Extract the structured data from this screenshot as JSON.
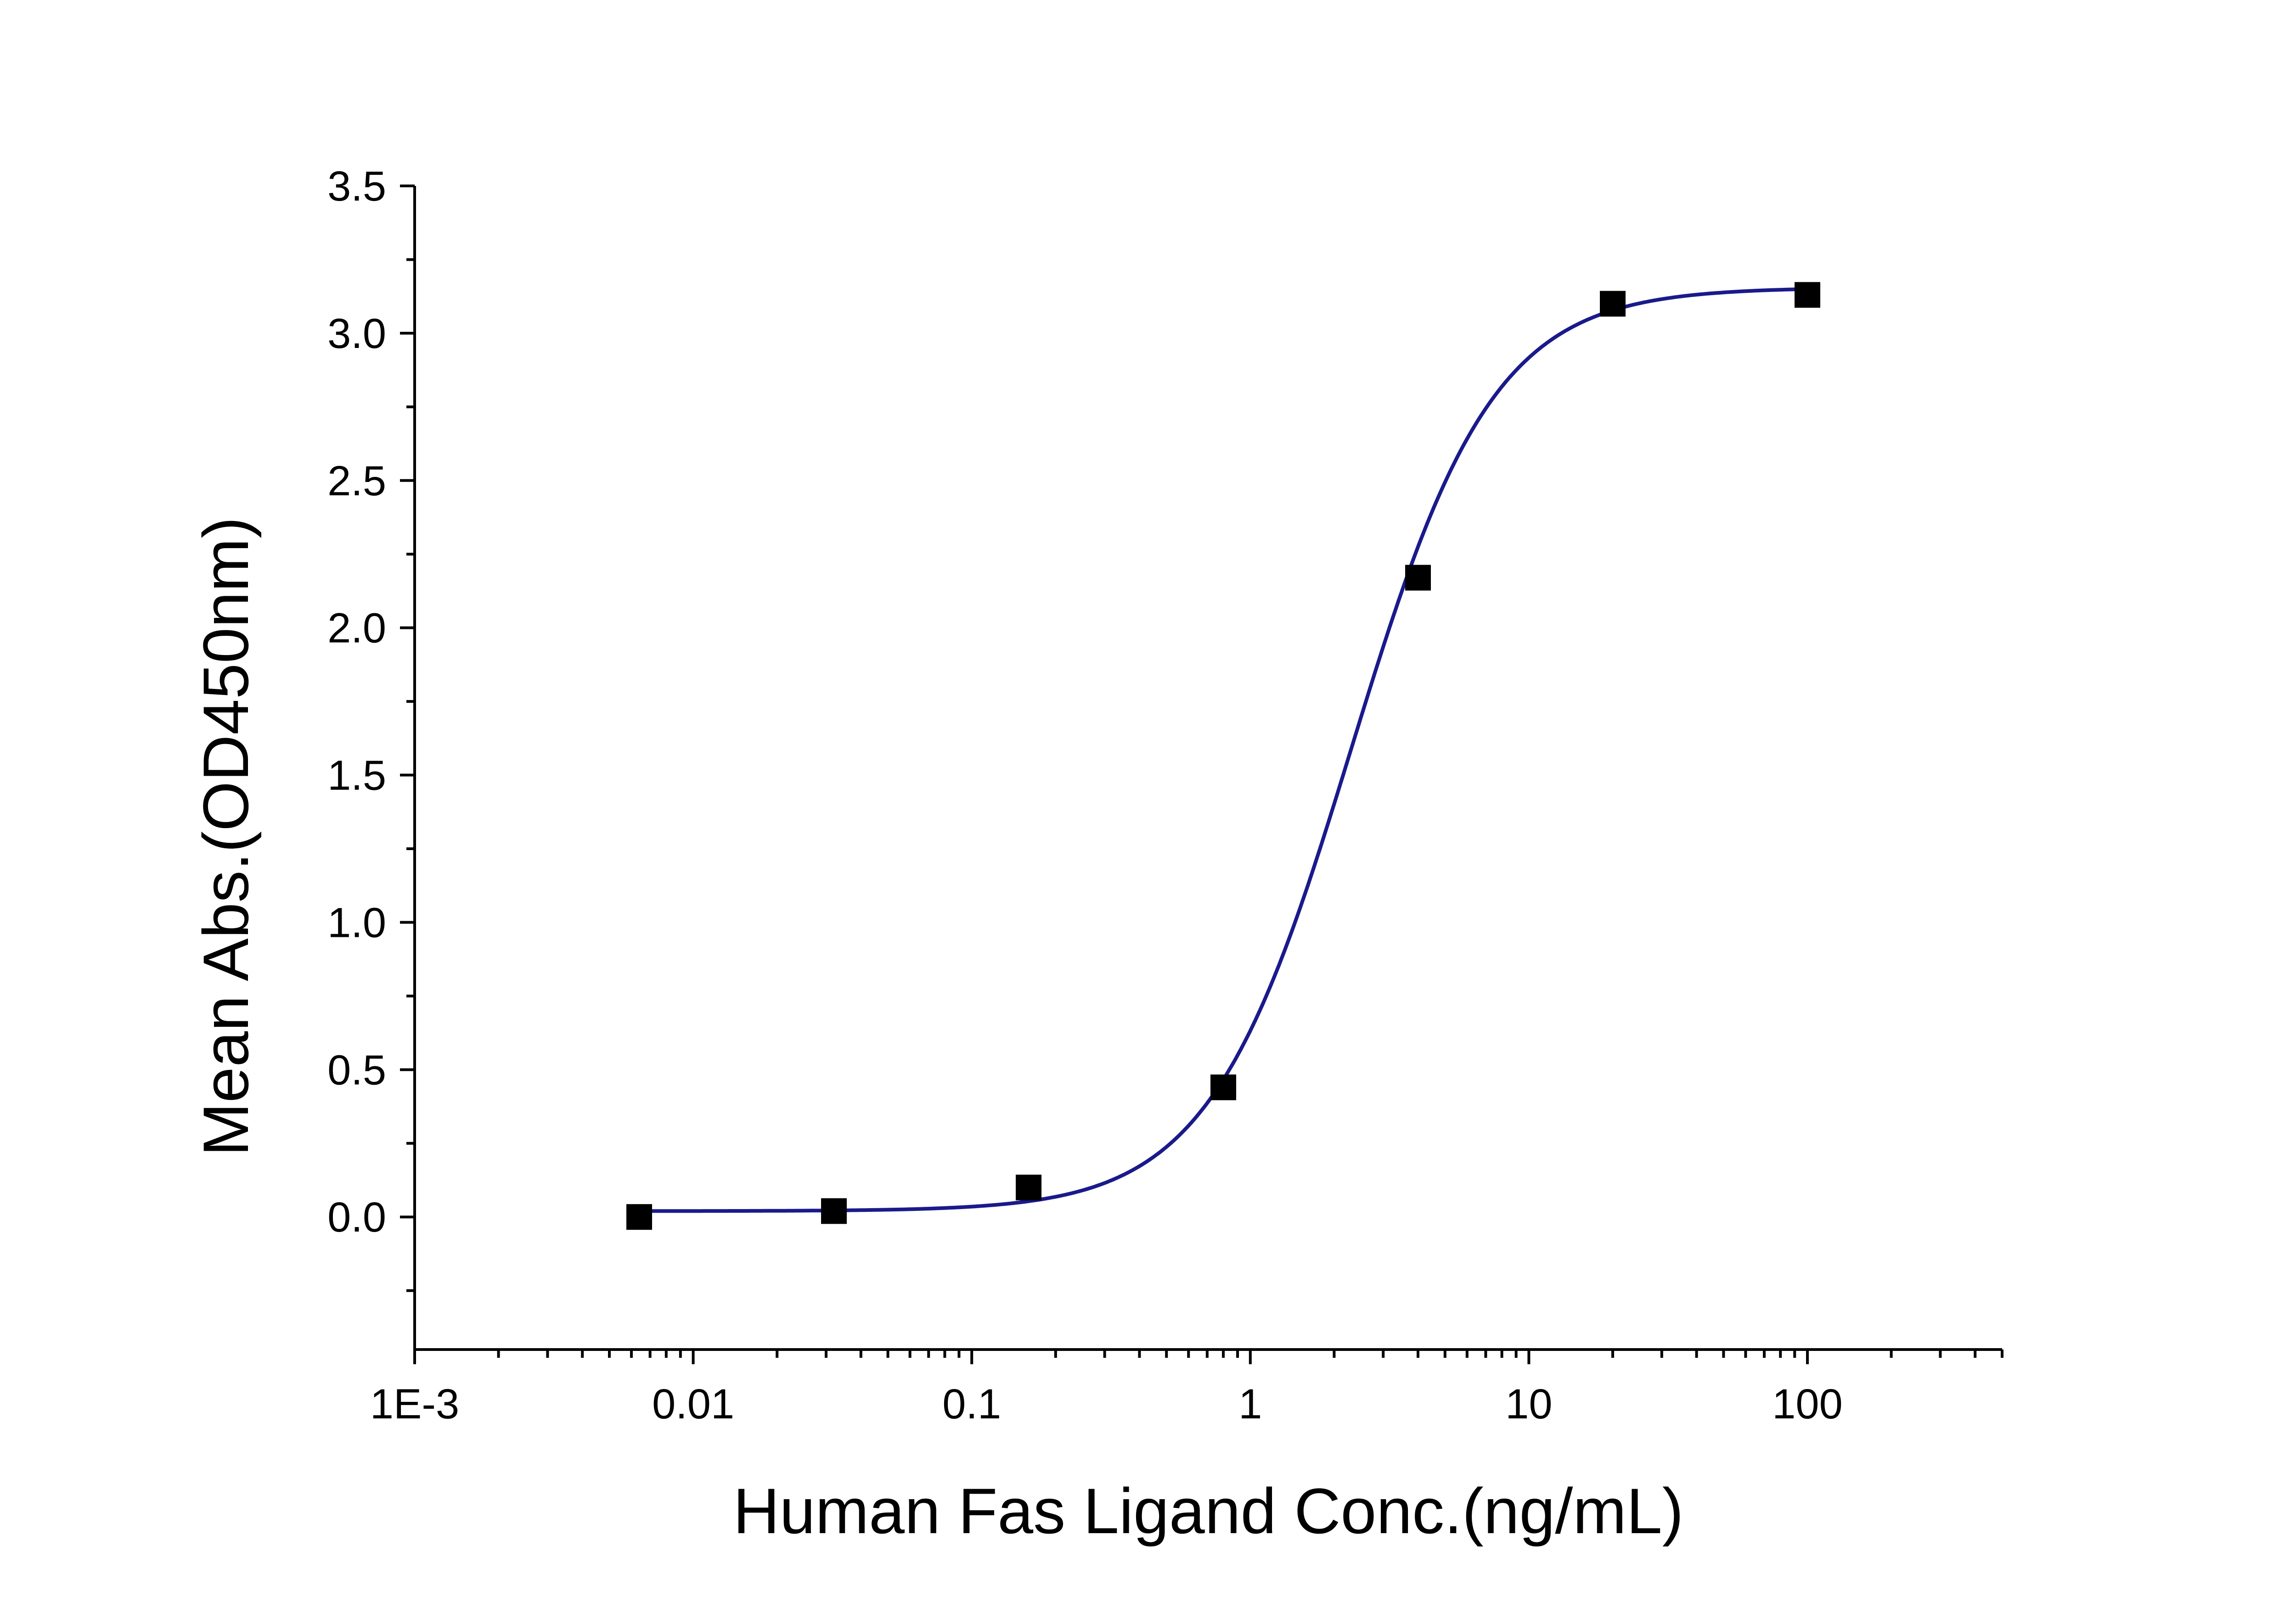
{
  "chart_data": {
    "type": "scatter",
    "title": "",
    "xlabel": "Human Fas Ligand Conc.(ng/mL)",
    "ylabel": "Mean Abs.(OD450nm)",
    "x_scale": "log",
    "xlim": [
      0.001,
      500
    ],
    "ylim": [
      -0.45,
      3.5
    ],
    "x_ticks": [
      {
        "value": 0.001,
        "label": "1E-3"
      },
      {
        "value": 0.01,
        "label": "0.01"
      },
      {
        "value": 0.1,
        "label": "0.1"
      },
      {
        "value": 1,
        "label": "1"
      },
      {
        "value": 10,
        "label": "10"
      },
      {
        "value": 100,
        "label": "100"
      }
    ],
    "y_ticks": [
      {
        "value": 0.0,
        "label": "0.0"
      },
      {
        "value": 0.5,
        "label": "0.5"
      },
      {
        "value": 1.0,
        "label": "1.0"
      },
      {
        "value": 1.5,
        "label": "1.5"
      },
      {
        "value": 2.0,
        "label": "2.0"
      },
      {
        "value": 2.5,
        "label": "2.5"
      },
      {
        "value": 3.0,
        "label": "3.0"
      },
      {
        "value": 3.5,
        "label": "3.5"
      }
    ],
    "grid": false,
    "legend": "none",
    "series": [
      {
        "x": [
          0.0064,
          0.032,
          0.16,
          0.8,
          4,
          20,
          100
        ],
        "y": [
          0.0,
          0.02,
          0.1,
          0.44,
          2.17,
          3.1,
          3.13
        ],
        "marker": "square",
        "color": "#000000"
      }
    ],
    "fit_curve": {
      "model": "4PL",
      "color": "#1a1a8c",
      "bottom": 0.02,
      "top": 3.155,
      "ec50": 2.3,
      "hill": 1.7
    }
  }
}
